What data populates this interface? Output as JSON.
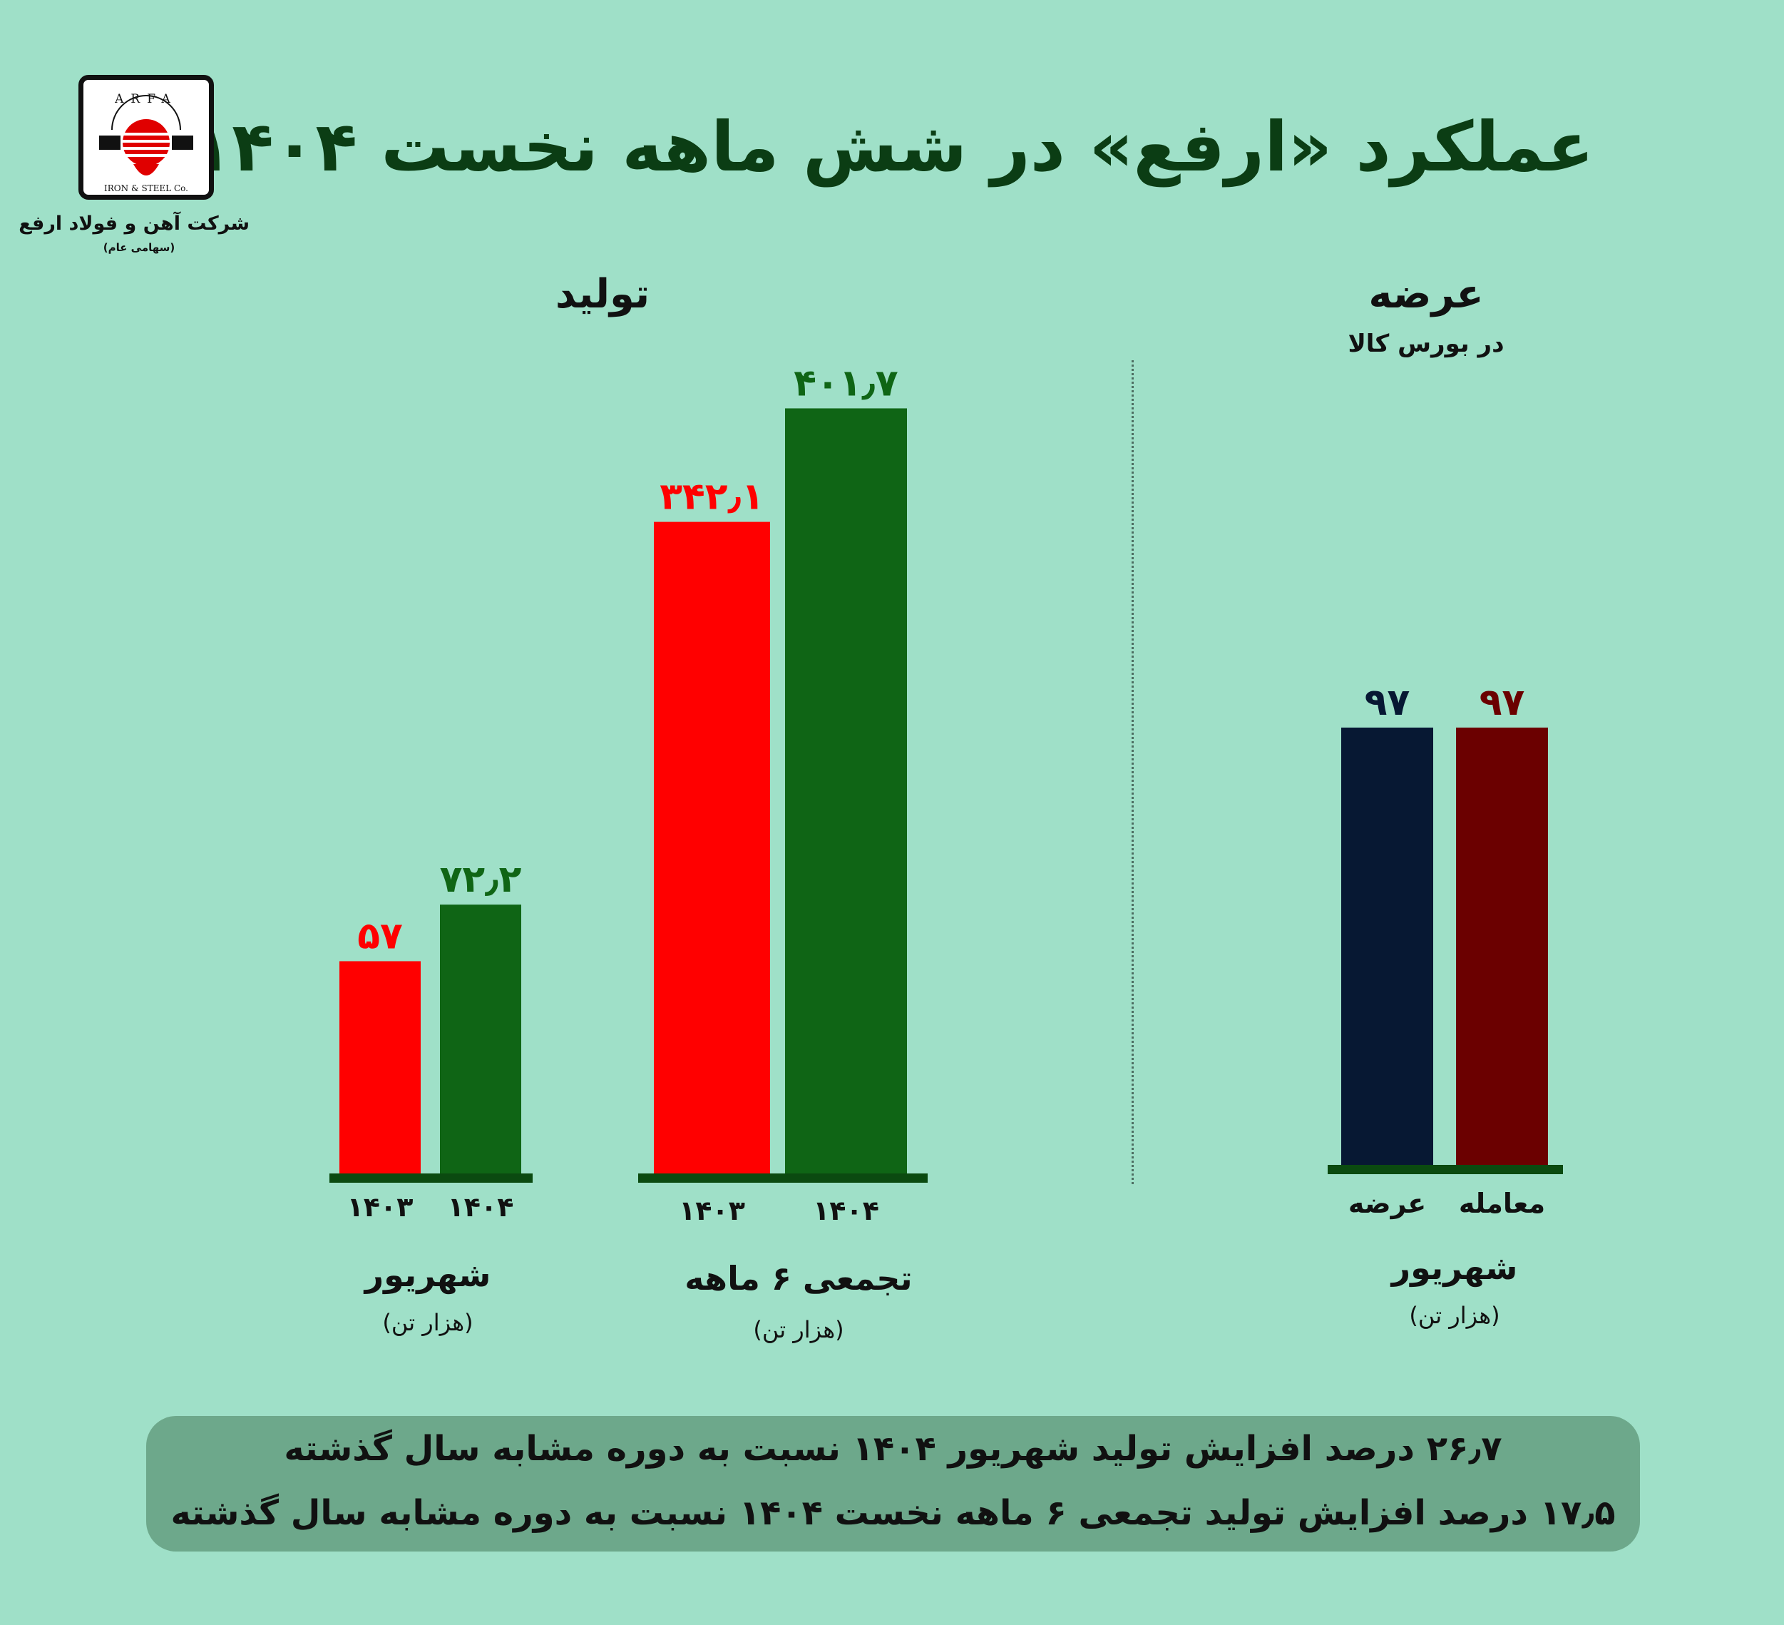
{
  "title": "عملکرد «ارفع» در شش ماهه نخست ۱۴۰۴",
  "logo": {
    "brand": "ARFA",
    "tagline": "IRON & STEEL Co.",
    "company": "شرکت آهن و فولاد ارفع",
    "company_type": "(سهامی عام)"
  },
  "sections": {
    "production": {
      "title": "تولید"
    },
    "supply": {
      "title": "عرضه",
      "subtitle": "در بورس کالا"
    }
  },
  "colors": {
    "background": "#9fe0c8",
    "red": "#ff0000",
    "green": "#0f6515",
    "navy": "#071833",
    "maroon": "#6b0000",
    "baseline": "#0b4a10"
  },
  "chart_data": [
    {
      "type": "bar",
      "group_label": "شهریور",
      "unit": "(هزار تن)",
      "categories": [
        "۱۴۰۳",
        "۱۴۰۴"
      ],
      "values": [
        57,
        72.2
      ],
      "value_labels": [
        "۵۷",
        "۷۲٫۲"
      ]
    },
    {
      "type": "bar",
      "group_label": "تجمعی ۶ ماهه",
      "unit": "(هزار تن)",
      "categories": [
        "۱۴۰۳",
        "۱۴۰۴"
      ],
      "values": [
        342.1,
        401.7
      ],
      "value_labels": [
        "۳۴۲٫۱",
        "۴۰۱٫۷"
      ]
    },
    {
      "type": "bar",
      "group_label": "شهریور",
      "unit": "(هزار تن)",
      "categories": [
        "عرضه",
        "معامله"
      ],
      "values": [
        97,
        97
      ],
      "value_labels": [
        "۹۷",
        "۹۷"
      ]
    }
  ],
  "summary": [
    "۲۶٫۷ درصد افزایش تولید شهریور ۱۴۰۴ نسبت به دوره مشابه سال گذشته",
    "۱۷٫۵ درصد افزایش تولید تجمعی ۶ ماهه نخست ۱۴۰۴ نسبت به دوره مشابه سال گذشته"
  ]
}
